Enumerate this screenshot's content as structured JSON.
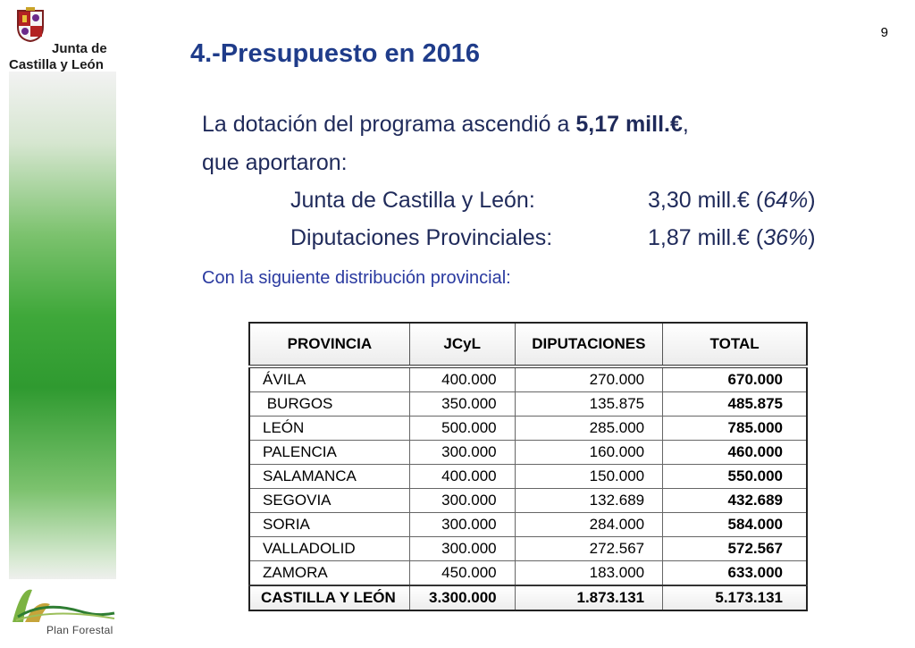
{
  "page_number": "9",
  "brand": {
    "line1": "Junta de",
    "line2": "Castilla y León",
    "bottom_logo": "Plan Forestal"
  },
  "title": "4.-Presupuesto en 2016",
  "intro": {
    "line1_prefix": "La dotación del programa ascendió a ",
    "line1_bold": "5,17 mill.€",
    "line1_suffix": ",",
    "line2": "que aportaron:",
    "contributors": [
      {
        "label": "Junta de Castilla y León:",
        "value": "3,30 mill.€ (",
        "pct": "64%",
        "close": ")"
      },
      {
        "label": "Diputaciones Provinciales:",
        "value": "1,87 mill.€ (",
        "pct": "36%",
        "close": ")"
      }
    ],
    "distribution": "Con la siguiente distribución provincial:"
  },
  "table": {
    "headers": [
      "PROVINCIA",
      "JCyL",
      "DIPUTACIONES",
      "TOTAL"
    ],
    "rows": [
      [
        "ÁVILA",
        "400.000",
        "270.000",
        "670.000"
      ],
      [
        " BURGOS",
        "350.000",
        "135.875",
        "485.875"
      ],
      [
        "LEÓN",
        "500.000",
        "285.000",
        "785.000"
      ],
      [
        "PALENCIA",
        "300.000",
        "160.000",
        "460.000"
      ],
      [
        "SALAMANCA",
        "400.000",
        "150.000",
        "550.000"
      ],
      [
        "SEGOVIA",
        "300.000",
        "132.689",
        "432.689"
      ],
      [
        "SORIA",
        "300.000",
        "284.000",
        "584.000"
      ],
      [
        "VALLADOLID",
        "300.000",
        "272.567",
        "572.567"
      ],
      [
        "ZAMORA",
        "450.000",
        "183.000",
        "633.000"
      ]
    ],
    "total_row": [
      "CASTILLA Y LEÓN",
      "3.300.000",
      "1.873.131",
      "5.173.131"
    ]
  }
}
